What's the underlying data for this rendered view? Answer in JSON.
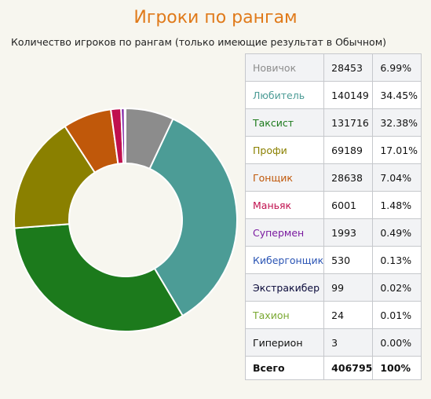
{
  "header": {
    "title": "Игроки по рангам",
    "subtitle": "Количество игроков по рангам (только имеющие результат в Обычном)"
  },
  "chart_data": {
    "type": "pie",
    "donut": true,
    "start": "top",
    "direction": "clockwise",
    "categories": [
      "Новичок",
      "Любитель",
      "Таксист",
      "Профи",
      "Гонщик",
      "Маньяк",
      "Супермен",
      "Кибергонщик",
      "Экстракибер",
      "Тахион",
      "Гиперион"
    ],
    "values": [
      28453,
      140149,
      131716,
      69189,
      28638,
      6001,
      1993,
      530,
      99,
      24,
      3
    ],
    "percent": [
      "6.99%",
      "34.45%",
      "32.38%",
      "17.01%",
      "7.04%",
      "1.48%",
      "0.49%",
      "0.13%",
      "0.02%",
      "0.01%",
      "0.00%"
    ],
    "colors": [
      "#8c8c8c",
      "#4c9c96",
      "#1c7a1c",
      "#8a8000",
      "#c0580a",
      "#c0104e",
      "#7a1aa0",
      "#2a54b4",
      "#0a0a3a",
      "#7aa832",
      "#101010"
    ],
    "total_label": "Всего",
    "total_value": 406795,
    "total_percent": "100%"
  },
  "table": {
    "rows": [
      {
        "name": "Новичок",
        "count": "28453",
        "pct": "6.99%",
        "color": "#8c8c8c"
      },
      {
        "name": "Любитель",
        "count": "140149",
        "pct": "34.45%",
        "color": "#4c9c96"
      },
      {
        "name": "Таксист",
        "count": "131716",
        "pct": "32.38%",
        "color": "#1c7a1c"
      },
      {
        "name": "Профи",
        "count": "69189",
        "pct": "17.01%",
        "color": "#8a8000"
      },
      {
        "name": "Гонщик",
        "count": "28638",
        "pct": "7.04%",
        "color": "#c0580a"
      },
      {
        "name": "Маньяк",
        "count": "6001",
        "pct": "1.48%",
        "color": "#c0104e"
      },
      {
        "name": "Супермен",
        "count": "1993",
        "pct": "0.49%",
        "color": "#7a1aa0"
      },
      {
        "name": "Кибергонщик",
        "count": "530",
        "pct": "0.13%",
        "color": "#2a54b4"
      },
      {
        "name": "Экстракибер",
        "count": "99",
        "pct": "0.02%",
        "color": "#0a0a3a"
      },
      {
        "name": "Тахион",
        "count": "24",
        "pct": "0.01%",
        "color": "#7aa832"
      },
      {
        "name": "Гиперион",
        "count": "3",
        "pct": "0.00%",
        "color": "#101010"
      }
    ],
    "total": {
      "name": "Всего",
      "count": "406795",
      "pct": "100%"
    }
  }
}
